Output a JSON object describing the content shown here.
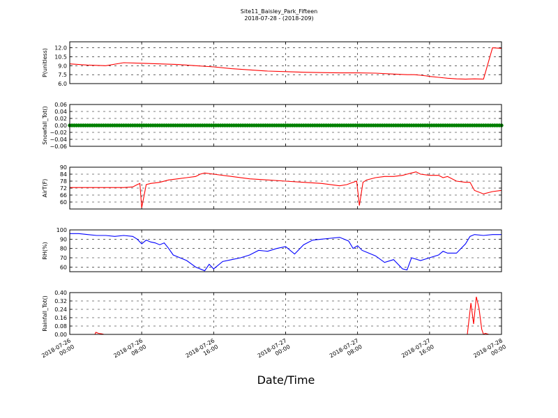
{
  "figure": {
    "title": "Site11_Baisley_Park_Fifteen",
    "subtitle": "2018-07-28 - (2018-209)",
    "xlabel": "Date/Time"
  },
  "chart_data": [
    {
      "type": "line",
      "ylabel": "P(unitless)",
      "ylim": [
        6.0,
        13.0
      ],
      "yticks": [
        "6.0",
        "7.5",
        "9.0",
        "10.5",
        "12.0"
      ],
      "grid": true,
      "color": "#ff0000",
      "x_hours": [
        0,
        2,
        4,
        6,
        8,
        10,
        12,
        14,
        16,
        18,
        20,
        22,
        24,
        26,
        28,
        30,
        32,
        34,
        36,
        37.5,
        38.3,
        39,
        39.6,
        40,
        41,
        42,
        43,
        44,
        45,
        46,
        47,
        48
      ],
      "y": [
        9.3,
        9.1,
        9.0,
        9.5,
        9.4,
        9.3,
        9.2,
        9.0,
        8.8,
        8.5,
        8.3,
        8.1,
        8.0,
        7.9,
        7.85,
        7.8,
        7.8,
        7.75,
        7.6,
        7.5,
        7.5,
        7.4,
        7.3,
        7.2,
        7.05,
        6.9,
        6.8,
        6.75,
        6.8,
        6.75,
        12.0,
        11.9
      ]
    },
    {
      "type": "scatter",
      "ylabel": "Snowfall_Tot()",
      "ylim": [
        -0.06,
        0.06
      ],
      "yticks": [
        "−0.06",
        "−0.04",
        "−0.02",
        "0.00",
        "0.02",
        "0.04",
        "0.06"
      ],
      "grid": true,
      "color": "#008000",
      "constant_value": 0.0,
      "x_range_hours": [
        0,
        48
      ],
      "interval_hours": 0.25
    },
    {
      "type": "line",
      "ylabel": "AirT(F)",
      "ylim": [
        54,
        90
      ],
      "yticks": [
        "60",
        "66",
        "72",
        "78",
        "84",
        "90"
      ],
      "grid": true,
      "color": "#ff0000",
      "x_hours": [
        0,
        2,
        4,
        6,
        7,
        7.5,
        7.8,
        8.0,
        8.5,
        9,
        10,
        11,
        12,
        13,
        14,
        14.5,
        15,
        16,
        18,
        20,
        22,
        24,
        26,
        28,
        30,
        30.8,
        31.5,
        31.9,
        32.2,
        32.6,
        33,
        34,
        35,
        36,
        37,
        37.5,
        38,
        38.5,
        39,
        40,
        41,
        41.5,
        42,
        43,
        44,
        44.5,
        45,
        46,
        47,
        48
      ],
      "y": [
        72.5,
        72.5,
        72.5,
        72.5,
        73,
        75,
        76,
        55,
        75,
        76,
        77,
        79,
        80,
        81,
        82,
        84,
        85,
        84,
        82,
        80,
        79,
        78,
        77,
        76,
        74,
        75,
        77,
        78,
        57,
        77,
        79,
        81,
        82,
        82,
        83,
        84,
        85,
        86,
        84,
        83,
        83,
        81,
        82,
        78,
        77,
        77,
        70,
        67,
        69,
        70
      ]
    },
    {
      "type": "line",
      "ylabel": "RH(%)",
      "ylim": [
        55,
        100
      ],
      "yticks": [
        "60",
        "70",
        "80",
        "90",
        "100"
      ],
      "grid": true,
      "color": "#0000ff",
      "x_hours": [
        0,
        1,
        2,
        3,
        4,
        5,
        6,
        7,
        7.5,
        8,
        8.5,
        9,
        9.5,
        10,
        10.5,
        11,
        11.5,
        12,
        13,
        14,
        15,
        15.5,
        16,
        17,
        18,
        19,
        20,
        21,
        22,
        23,
        24,
        25,
        26,
        27,
        28,
        29,
        30,
        31,
        31.5,
        32,
        32.5,
        33,
        34,
        35,
        36,
        37,
        37.5,
        38,
        39,
        40,
        41,
        41.5,
        42,
        43,
        44,
        44.5,
        45,
        46,
        47,
        48
      ],
      "y": [
        96,
        96,
        95,
        94,
        94,
        93,
        94,
        93,
        90,
        85,
        89,
        87,
        86,
        84,
        86,
        80,
        73,
        71,
        67,
        60,
        56,
        63,
        58,
        66,
        68,
        70,
        73,
        78,
        77,
        80,
        82,
        74,
        84,
        89,
        90,
        91,
        92,
        88,
        80,
        83,
        78,
        76,
        72,
        65,
        68,
        58,
        57,
        70,
        67,
        70,
        73,
        77,
        75,
        75,
        85,
        93,
        95,
        94,
        95,
        95
      ]
    },
    {
      "type": "line",
      "ylabel": "Rainfall_Tot()",
      "ylim": [
        0.0,
        0.4
      ],
      "yticks": [
        "0.00",
        "0.08",
        "0.16",
        "0.24",
        "0.32",
        "0.40"
      ],
      "grid": true,
      "color": "#ff0000",
      "x_hours": [
        0,
        2.8,
        2.9,
        3.2,
        3.6,
        3.8,
        44.2,
        44.6,
        44.9,
        45.2,
        45.5,
        45.8,
        46.0,
        46.2,
        46.6,
        48
      ],
      "y": [
        0,
        0,
        0.02,
        0.01,
        0.005,
        0,
        0,
        0.3,
        0.1,
        0.36,
        0.25,
        0.05,
        0.0,
        0.01,
        0.0,
        0
      ]
    }
  ],
  "xaxis": {
    "ticks": [
      {
        "line1": "2018-07-26",
        "line2": "00:00",
        "hour": 0
      },
      {
        "line1": "2018-07-26",
        "line2": "08:00",
        "hour": 8
      },
      {
        "line1": "2018-07-26",
        "line2": "16:00",
        "hour": 16
      },
      {
        "line1": "2018-07-27",
        "line2": "00:00",
        "hour": 24
      },
      {
        "line1": "2018-07-27",
        "line2": "08:00",
        "hour": 32
      },
      {
        "line1": "2018-07-27",
        "line2": "16:00",
        "hour": 40
      },
      {
        "line1": "2018-07-28",
        "line2": "00:00",
        "hour": 48
      }
    ],
    "range_hours": [
      0,
      48
    ]
  }
}
